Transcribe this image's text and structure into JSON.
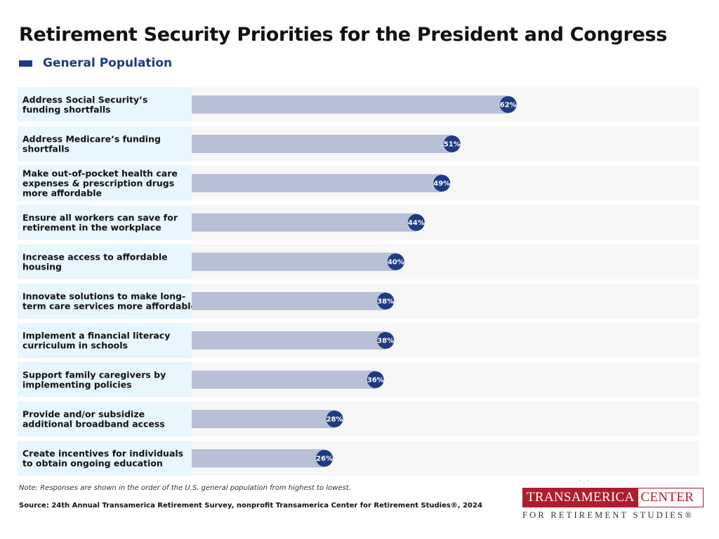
{
  "title": "Retirement Security Priorities for the President and Congress",
  "legend": {
    "label": "General Population",
    "color": "#1f3a80"
  },
  "colors": {
    "bar": "#b8c0d8",
    "dot": "#1f3a80",
    "label_bg": "#e8f6fd",
    "row_bg": "#f7f7f7"
  },
  "chart_data": {
    "type": "bar",
    "orientation": "horizontal",
    "title": "Retirement Security Priorities for the President and Congress",
    "series": [
      {
        "name": "General Population"
      }
    ],
    "unit": "%",
    "xlim": [
      0,
      100
    ],
    "categories": [
      [
        "Address Social Security’s",
        "funding shortfalls"
      ],
      [
        "Address Medicare’s funding",
        "shortfalls"
      ],
      [
        "Make out-of-pocket health care",
        "expenses & prescription drugs",
        "more affordable"
      ],
      [
        "Ensure all workers can save for",
        "retirement in the workplace"
      ],
      [
        "Increase access to affordable",
        "housing"
      ],
      [
        "Innovate solutions to make long-",
        "term care services more affordable"
      ],
      [
        "Implement a financial literacy",
        "curriculum in schools"
      ],
      [
        "Support family caregivers by",
        "implementing policies"
      ],
      [
        "Provide and/or subsidize",
        "additional broadband access"
      ],
      [
        "Create incentives for individuals",
        "to obtain ongoing education"
      ]
    ],
    "values": [
      62,
      51,
      49,
      44,
      40,
      38,
      38,
      36,
      28,
      26
    ],
    "labels": [
      "62%",
      "51%",
      "49%",
      "44%",
      "40%",
      "38%",
      "38%",
      "36%",
      "28%",
      "26%"
    ]
  },
  "note": "Note: Responses are shown in the order of the U.S. general population from highest to lowest.",
  "source": "Source: 24th Annual Transamerica Retirement Survey, nonprofit Transamerica Center for Retirement Studies®, 2024",
  "logo": {
    "name": "TRANSAMERICA",
    "center": "CENTER",
    "sub": "FOR RETIREMENT STUDIES®"
  }
}
